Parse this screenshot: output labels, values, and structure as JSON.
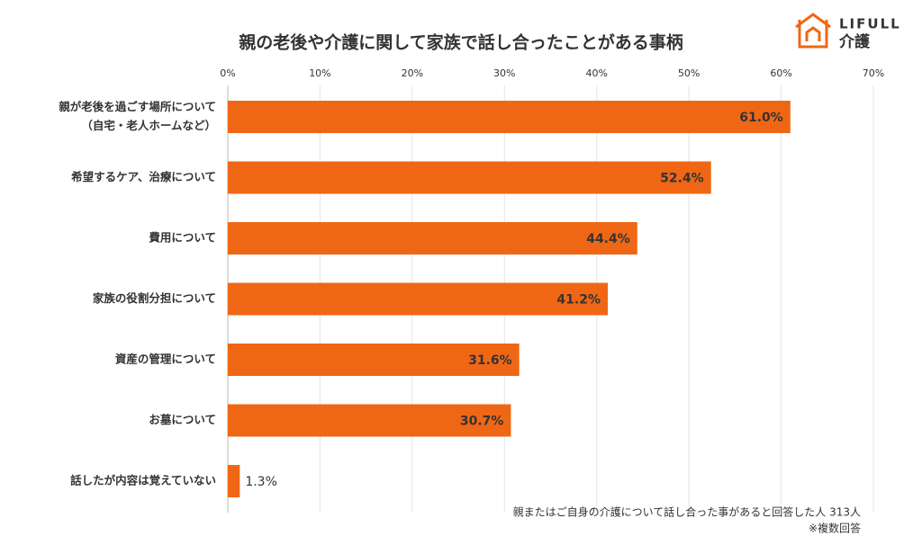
{
  "chart_data": {
    "type": "hbar",
    "title": "親の老後や介護に関して家族で話し合ったことがある事柄",
    "categories": [
      [
        "親が老後を過ごす場所について",
        "（自宅・老人ホームなど）"
      ],
      [
        "希望するケア、治療について"
      ],
      [
        "費用について"
      ],
      [
        "家族の役割分担について"
      ],
      [
        "資産の管理について"
      ],
      [
        "お墓について"
      ],
      [
        "話したが内容は覚えていない"
      ]
    ],
    "values": [
      61.0,
      52.4,
      44.4,
      41.2,
      31.6,
      30.7,
      1.3
    ],
    "value_labels": [
      "61.0%",
      "52.4%",
      "44.4%",
      "41.2%",
      "31.6%",
      "30.7%",
      "1.3%"
    ],
    "color": "#ef6714",
    "xlim": [
      0,
      70
    ],
    "xticks": [
      {
        "value": 0,
        "label": "0%"
      },
      {
        "value": 10,
        "label": "10%"
      },
      {
        "value": 20,
        "label": "20%"
      },
      {
        "value": 30,
        "label": "30%"
      },
      {
        "value": 40,
        "label": "40%"
      },
      {
        "value": 50,
        "label": "50%"
      },
      {
        "value": 60,
        "label": "60%"
      },
      {
        "value": 70,
        "label": "70%"
      }
    ],
    "grid": true,
    "notes": [
      "親またはご自身の介護について話し合った事があると回答した人 313人",
      "※複数回答"
    ]
  },
  "logo": {
    "brand": "LIFULL",
    "service": "介護"
  }
}
